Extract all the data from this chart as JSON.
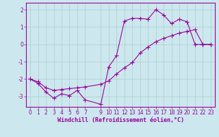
{
  "xlabel": "Windchill (Refroidissement éolien,°C)",
  "bg_color": "#cce8ee",
  "grid_color": "#aacccc",
  "line_color": "#990099",
  "x_hours": [
    0,
    1,
    2,
    3,
    4,
    5,
    6,
    7,
    9,
    10,
    11,
    12,
    13,
    14,
    15,
    16,
    17,
    18,
    19,
    20,
    21,
    22,
    23
  ],
  "line1_y": [
    -2.0,
    -2.25,
    -2.75,
    -3.1,
    -2.85,
    -2.95,
    -2.65,
    -3.2,
    -3.45,
    -1.3,
    -0.65,
    1.35,
    1.5,
    1.5,
    1.45,
    2.0,
    1.7,
    1.2,
    1.45,
    1.3,
    0.0,
    0.0,
    0.0
  ],
  "line2_y": [
    -2.0,
    -2.15,
    -2.5,
    -2.65,
    -2.6,
    -2.55,
    -2.5,
    -2.45,
    -2.3,
    -2.1,
    -1.7,
    -1.35,
    -1.05,
    -0.5,
    -0.15,
    0.15,
    0.35,
    0.5,
    0.65,
    0.75,
    0.85,
    0.0,
    0.0
  ],
  "ylim": [
    -3.6,
    2.4
  ],
  "xlim": [
    -0.5,
    23.5
  ],
  "yticks": [
    -3,
    -2,
    -1,
    0,
    1,
    2
  ],
  "xticks": [
    0,
    1,
    2,
    3,
    4,
    5,
    6,
    7,
    9,
    10,
    11,
    12,
    13,
    14,
    15,
    16,
    17,
    18,
    19,
    20,
    21,
    22,
    23
  ],
  "tick_fontsize": 5.5,
  "xlabel_fontsize": 6
}
